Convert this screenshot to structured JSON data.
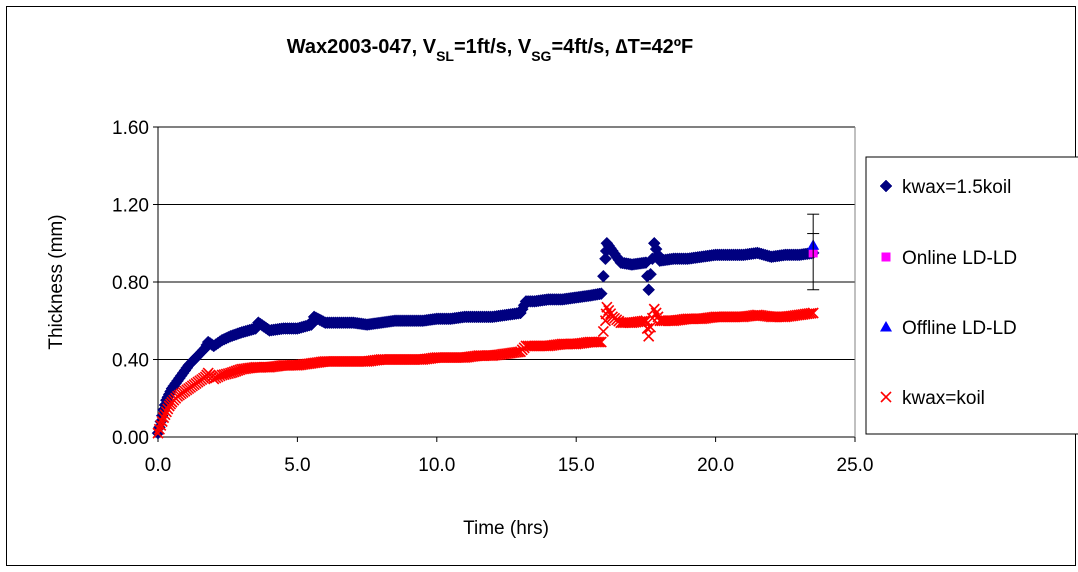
{
  "chart_data": {
    "type": "scatter",
    "title": {
      "parts": [
        {
          "text": "Wax2003-047, V"
        },
        {
          "text": "SL",
          "sub": true
        },
        {
          "text": "=1ft/s, V"
        },
        {
          "text": "SG",
          "sub": true
        },
        {
          "text": "=4ft/s, ∆T=42ºF"
        }
      ]
    },
    "xlabel": "Time (hrs)",
    "ylabel": "Thickness (mm)",
    "xlim": [
      0,
      25
    ],
    "ylim": [
      0,
      1.6
    ],
    "xticks": [
      "0.0",
      "5.0",
      "10.0",
      "15.0",
      "20.0",
      "25.0"
    ],
    "yticks": [
      "0.00",
      "0.40",
      "0.80",
      "1.20",
      "1.60"
    ],
    "grid": "horizontal",
    "legend_position": "right",
    "series": [
      {
        "name": "kwax=1.5koil",
        "marker": "diamond",
        "color": "#000080",
        "points": [
          [
            0.0,
            0.02
          ],
          [
            0.1,
            0.08
          ],
          [
            0.2,
            0.14
          ],
          [
            0.3,
            0.19
          ],
          [
            0.4,
            0.22
          ],
          [
            0.5,
            0.25
          ],
          [
            0.7,
            0.29
          ],
          [
            0.9,
            0.33
          ],
          [
            1.1,
            0.37
          ],
          [
            1.3,
            0.4
          ],
          [
            1.5,
            0.43
          ],
          [
            1.7,
            0.46
          ],
          [
            1.8,
            0.49
          ],
          [
            2.0,
            0.47
          ],
          [
            2.3,
            0.5
          ],
          [
            2.6,
            0.52
          ],
          [
            3.0,
            0.54
          ],
          [
            3.5,
            0.56
          ],
          [
            3.6,
            0.59
          ],
          [
            4.0,
            0.55
          ],
          [
            4.5,
            0.56
          ],
          [
            5.0,
            0.56
          ],
          [
            5.5,
            0.58
          ],
          [
            5.6,
            0.62
          ],
          [
            6.0,
            0.59
          ],
          [
            6.5,
            0.59
          ],
          [
            7.0,
            0.59
          ],
          [
            7.5,
            0.58
          ],
          [
            8.0,
            0.59
          ],
          [
            8.5,
            0.6
          ],
          [
            9.0,
            0.6
          ],
          [
            9.5,
            0.6
          ],
          [
            10.0,
            0.61
          ],
          [
            10.5,
            0.61
          ],
          [
            11.0,
            0.62
          ],
          [
            11.5,
            0.62
          ],
          [
            12.0,
            0.62
          ],
          [
            12.5,
            0.63
          ],
          [
            13.0,
            0.64
          ],
          [
            13.2,
            0.7
          ],
          [
            13.5,
            0.7
          ],
          [
            14.0,
            0.71
          ],
          [
            14.5,
            0.71
          ],
          [
            15.0,
            0.72
          ],
          [
            15.5,
            0.73
          ],
          [
            15.9,
            0.74
          ],
          [
            16.05,
            0.92
          ],
          [
            16.1,
            1.0
          ],
          [
            16.3,
            0.96
          ],
          [
            16.6,
            0.9
          ],
          [
            17.0,
            0.89
          ],
          [
            17.5,
            0.9
          ],
          [
            17.6,
            0.76
          ],
          [
            17.8,
            1.0
          ],
          [
            18.0,
            0.91
          ],
          [
            18.5,
            0.92
          ],
          [
            19.0,
            0.92
          ],
          [
            19.5,
            0.93
          ],
          [
            20.0,
            0.94
          ],
          [
            20.5,
            0.94
          ],
          [
            21.0,
            0.94
          ],
          [
            21.5,
            0.95
          ],
          [
            22.0,
            0.93
          ],
          [
            22.5,
            0.94
          ],
          [
            23.0,
            0.94
          ],
          [
            23.5,
            0.95
          ]
        ]
      },
      {
        "name": "Online LD-LD",
        "marker": "square",
        "color": "#ff00ff",
        "points": [
          [
            23.5,
            0.95
          ]
        ]
      },
      {
        "name": "Offline LD-LD",
        "marker": "triangle",
        "color": "#0000ff",
        "points": [
          [
            23.5,
            0.99
          ]
        ]
      },
      {
        "name": "kwax=koil",
        "marker": "x",
        "color": "#ff0000",
        "points": [
          [
            0.0,
            0.02
          ],
          [
            0.1,
            0.06
          ],
          [
            0.2,
            0.1
          ],
          [
            0.3,
            0.13
          ],
          [
            0.4,
            0.16
          ],
          [
            0.5,
            0.18
          ],
          [
            0.7,
            0.21
          ],
          [
            0.9,
            0.23
          ],
          [
            1.1,
            0.25
          ],
          [
            1.3,
            0.27
          ],
          [
            1.5,
            0.29
          ],
          [
            1.7,
            0.31
          ],
          [
            1.8,
            0.33
          ],
          [
            2.0,
            0.3
          ],
          [
            2.3,
            0.32
          ],
          [
            2.6,
            0.33
          ],
          [
            3.0,
            0.35
          ],
          [
            3.5,
            0.36
          ],
          [
            4.0,
            0.36
          ],
          [
            4.5,
            0.37
          ],
          [
            5.0,
            0.37
          ],
          [
            5.5,
            0.38
          ],
          [
            6.0,
            0.39
          ],
          [
            6.5,
            0.39
          ],
          [
            7.0,
            0.39
          ],
          [
            7.5,
            0.39
          ],
          [
            8.0,
            0.4
          ],
          [
            8.5,
            0.4
          ],
          [
            9.0,
            0.4
          ],
          [
            9.5,
            0.4
          ],
          [
            10.0,
            0.41
          ],
          [
            10.5,
            0.41
          ],
          [
            11.0,
            0.41
          ],
          [
            11.5,
            0.42
          ],
          [
            12.0,
            0.42
          ],
          [
            12.5,
            0.43
          ],
          [
            13.0,
            0.44
          ],
          [
            13.2,
            0.47
          ],
          [
            13.5,
            0.47
          ],
          [
            14.0,
            0.47
          ],
          [
            14.5,
            0.48
          ],
          [
            15.0,
            0.48
          ],
          [
            15.5,
            0.49
          ],
          [
            15.9,
            0.49
          ],
          [
            16.05,
            0.6
          ],
          [
            16.1,
            0.67
          ],
          [
            16.3,
            0.62
          ],
          [
            16.6,
            0.59
          ],
          [
            17.0,
            0.59
          ],
          [
            17.5,
            0.6
          ],
          [
            17.6,
            0.52
          ],
          [
            17.8,
            0.66
          ],
          [
            18.0,
            0.6
          ],
          [
            18.5,
            0.6
          ],
          [
            19.0,
            0.61
          ],
          [
            19.5,
            0.61
          ],
          [
            20.0,
            0.62
          ],
          [
            20.5,
            0.62
          ],
          [
            21.0,
            0.62
          ],
          [
            21.5,
            0.63
          ],
          [
            22.0,
            0.62
          ],
          [
            22.5,
            0.62
          ],
          [
            23.0,
            0.63
          ],
          [
            23.5,
            0.64
          ]
        ]
      }
    ],
    "error_bars": [
      {
        "x": 23.5,
        "y": 0.95,
        "low": 0.76,
        "high": 1.15
      }
    ]
  }
}
